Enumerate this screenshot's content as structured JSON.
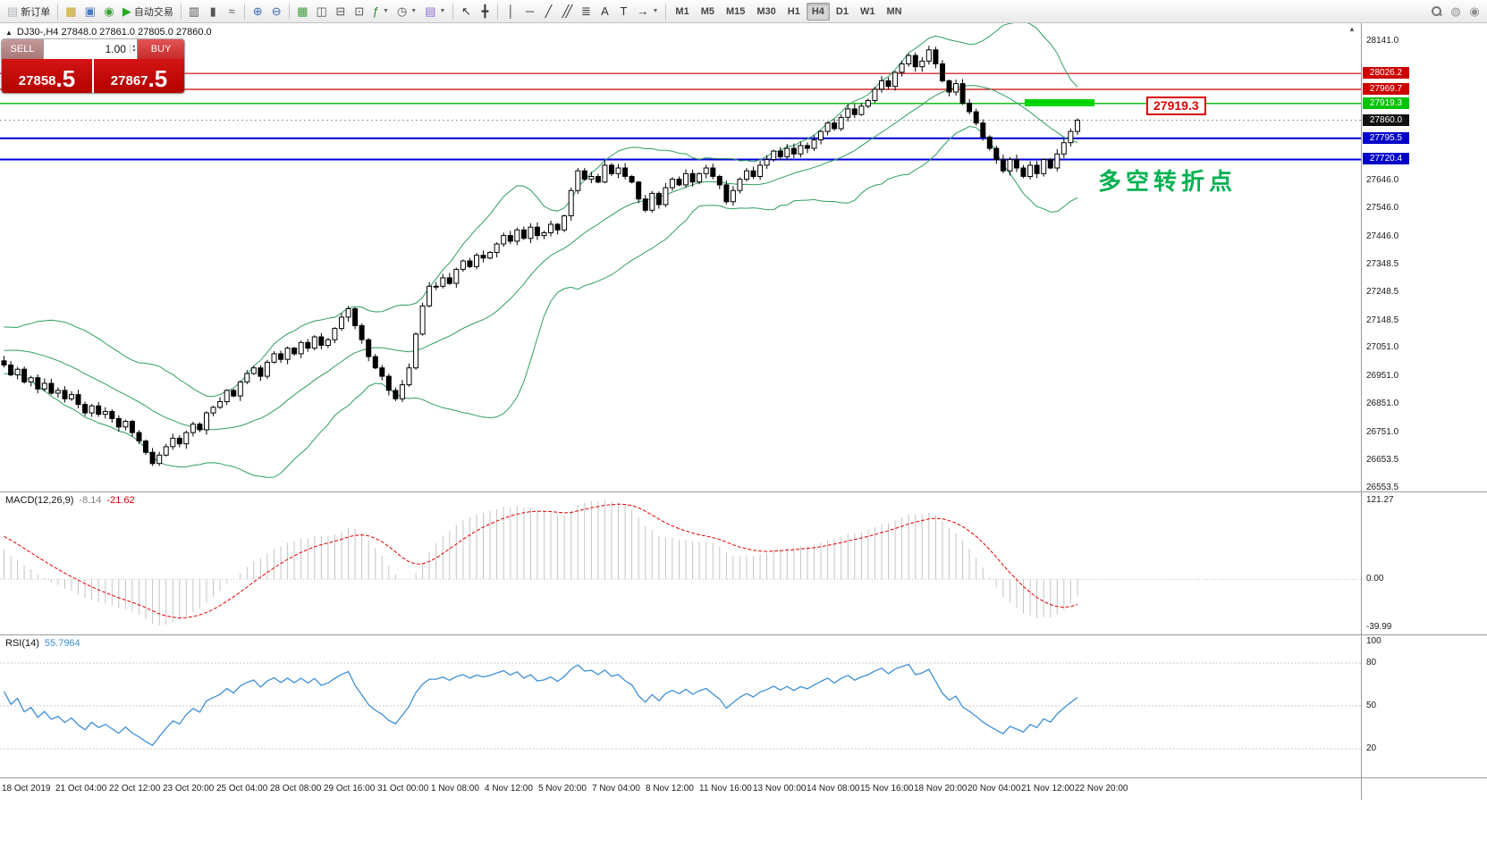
{
  "toolbar": {
    "items": [
      {
        "t": "btn",
        "name": "new-order-button",
        "glyph": "▤",
        "gc": "#b0b6c0",
        "label": "新订单"
      },
      {
        "t": "sep"
      },
      {
        "t": "btn",
        "name": "new-chart-button",
        "glyph": "▦",
        "gc": "#c79a2a"
      },
      {
        "t": "btn",
        "name": "profiles-button",
        "glyph": "▣",
        "gc": "#4a7ac0"
      },
      {
        "t": "btn",
        "name": "community-button",
        "glyph": "◉",
        "gc": "#3aa03a"
      },
      {
        "t": "btn",
        "name": "autotrading-button",
        "glyph": "▶",
        "gc": "#22aa22",
        "label": "自动交易"
      },
      {
        "t": "sep"
      },
      {
        "t": "btn",
        "name": "bar-chart-button",
        "glyph": "▥",
        "gc": "#555555"
      },
      {
        "t": "btn",
        "name": "candlestick-chart-button",
        "glyph": "▮",
        "gc": "#555555"
      },
      {
        "t": "btn",
        "name": "line-chart-button",
        "glyph": "≈",
        "gc": "#555555"
      },
      {
        "t": "sep"
      },
      {
        "t": "btn",
        "name": "zoom-in-button",
        "glyph": "⊕",
        "gc": "#3a6ab0"
      },
      {
        "t": "btn",
        "name": "zoom-out-button",
        "glyph": "⊖",
        "gc": "#3a6ab0"
      },
      {
        "t": "sep"
      },
      {
        "t": "btn",
        "name": "grid-button",
        "glyph": "▦",
        "gc": "#3aa03a"
      },
      {
        "t": "btn",
        "name": "tile-windows-button",
        "glyph": "◫",
        "gc": "#555555"
      },
      {
        "t": "btn",
        "name": "cascade-windows-button",
        "glyph": "⊟",
        "gc": "#555555"
      },
      {
        "t": "btn",
        "name": "arrange-windows-button",
        "glyph": "⊡",
        "gc": "#555555"
      },
      {
        "t": "btn",
        "name": "indicators-button",
        "glyph": "ƒ",
        "gc": "#228a22",
        "caret": true
      },
      {
        "t": "btn",
        "name": "periods-button",
        "glyph": "◷",
        "gc": "#555555",
        "caret": true
      },
      {
        "t": "btn",
        "name": "templates-button",
        "glyph": "▤",
        "gc": "#8a6ad0",
        "caret": true
      },
      {
        "t": "sep"
      },
      {
        "t": "btn",
        "name": "cursor-button",
        "glyph": "↖",
        "gc": "#333333"
      },
      {
        "t": "btn",
        "name": "crosshair-button",
        "glyph": "╋",
        "gc": "#333333"
      },
      {
        "t": "sep"
      },
      {
        "t": "btn",
        "name": "vertical-line-button",
        "glyph": "│",
        "gc": "#333333"
      },
      {
        "t": "btn",
        "name": "horizontal-line-button",
        "glyph": "─",
        "gc": "#333333"
      },
      {
        "t": "btn",
        "name": "trendline-button",
        "glyph": "╱",
        "gc": "#333333"
      },
      {
        "t": "btn",
        "name": "channel-button",
        "glyph": "╱╱",
        "gc": "#333333"
      },
      {
        "t": "btn",
        "name": "fibonacci-button",
        "glyph": "≣",
        "gc": "#333333"
      },
      {
        "t": "btn",
        "name": "text-button",
        "glyph": "A",
        "gc": "#333333"
      },
      {
        "t": "btn",
        "name": "label-button",
        "glyph": "T",
        "gc": "#333333"
      },
      {
        "t": "btn",
        "name": "shapes-button",
        "glyph": "→",
        "gc": "#333333",
        "caret": true
      },
      {
        "t": "sep"
      }
    ],
    "timeframes": [
      "M1",
      "M5",
      "M15",
      "M30",
      "H1",
      "H4",
      "D1",
      "W1",
      "MN"
    ],
    "active_timeframe": "H4",
    "right_items": [
      {
        "name": "search-button",
        "lens": true
      },
      {
        "name": "notifications-button",
        "glyph": "◍",
        "gc": "#909090"
      },
      {
        "name": "chat-button",
        "glyph": "◉",
        "gc": "#909090"
      }
    ]
  },
  "symbol_info": "DJ30-,H4  27848.0 27861.0 27805.0 27860.0",
  "trade_panel": {
    "sell_label": "SELL",
    "buy_label": "BUY",
    "volume": "1.00",
    "sell_price_int": "27858",
    "sell_price_frac": ".5",
    "buy_price_int": "27867",
    "buy_price_frac": ".5"
  },
  "annotations": {
    "price_callout": "27919.3",
    "turning_point_label": "多空转折点"
  },
  "levels": [
    {
      "label": "28026.2",
      "price": 28026.2,
      "line_color": "#cc0000",
      "box_color": "#cc0000",
      "width": 1.2
    },
    {
      "label": "27969.7",
      "price": 27969.7,
      "line_color": "#cc0000",
      "box_color": "#cc0000",
      "width": 1.2
    },
    {
      "label": "27919.3",
      "price": 27919.3,
      "line_color": "#00b400",
      "box_color": "#00c400",
      "width": 1.4
    },
    {
      "label": "27860.0",
      "price": 27860.0,
      "line_color": "#999999",
      "box_color": "#111111",
      "width": 1,
      "dashed": true
    },
    {
      "label": "27795.5",
      "price": 27795.5,
      "line_color": "#0000dd",
      "box_color": "#0000c8",
      "width": 2
    },
    {
      "label": "27720.4",
      "price": 27720.4,
      "line_color": "#0000dd",
      "box_color": "#0000c8",
      "width": 2
    }
  ],
  "price_axis_ticks": [
    "28141.0",
    "27646.0",
    "27546.0",
    "27446.0",
    "27348.5",
    "27248.5",
    "27148.5",
    "27051.0",
    "26951.0",
    "26851.0",
    "26751.0",
    "26653.5",
    "26553.5"
  ],
  "macd": {
    "name": "MACD(12,26,9)",
    "main_value": "-8.14",
    "signal_value": "-21.62",
    "axis_labels": [
      "121.27",
      "0.00",
      "-39.99"
    ]
  },
  "rsi": {
    "name": "RSI(14)",
    "value": "55.7964",
    "axis_labels": [
      "100",
      "80",
      "50",
      "20"
    ],
    "levels": [
      80,
      50,
      20
    ]
  },
  "colors": {
    "up_candle": "#ffffff",
    "down_candle": "#000000",
    "candle_border": "#000000",
    "bollinger": "#2f9e5f",
    "macd_histogram": "#c4c4c4",
    "macd_signal": "#e00000",
    "rsi_line": "#3f8fd6",
    "level_dotted": "#c8c8c8"
  },
  "chart_data": {
    "type": "candlestick",
    "symbol": "DJ30-",
    "timeframe": "H4",
    "ohlc_current": {
      "open": 27848.0,
      "high": 27861.0,
      "low": 27805.0,
      "close": 27860.0
    },
    "bollinger": {
      "period": 20,
      "deviation": 2
    },
    "visible_start": 30,
    "closes": [
      26700,
      26715,
      26740,
      26765,
      26790,
      26810,
      26835,
      26860,
      26880,
      26905,
      26925,
      26950,
      26970,
      26995,
      27015,
      27035,
      27050,
      27065,
      27075,
      27085,
      27090,
      27095,
      27088,
      27080,
      27072,
      27062,
      27052,
      27042,
      27022,
      27005,
      26990,
      26955,
      26975,
      26930,
      26945,
      26905,
      26925,
      26890,
      26900,
      26870,
      26885,
      26850,
      26820,
      26845,
      26815,
      26825,
      26800,
      26770,
      26790,
      26750,
      26720,
      26680,
      26640,
      26670,
      26700,
      26730,
      26710,
      26750,
      26780,
      26760,
      26820,
      26840,
      26860,
      26900,
      26880,
      26930,
      26960,
      26980,
      26950,
      27000,
      27030,
      27010,
      27050,
      27030,
      27070,
      27050,
      27090,
      27060,
      27080,
      27120,
      27160,
      27190,
      27130,
      27080,
      27020,
      26980,
      26950,
      26900,
      26870,
      26920,
      26980,
      27100,
      27200,
      27270,
      27270,
      27300,
      27280,
      27330,
      27360,
      27340,
      27380,
      27370,
      27390,
      27420,
      27450,
      27430,
      27470,
      27440,
      27480,
      27450,
      27460,
      27490,
      27470,
      27520,
      27610,
      27680,
      27650,
      27660,
      27640,
      27700,
      27670,
      27690,
      27660,
      27640,
      27580,
      27540,
      27600,
      27560,
      27620,
      27650,
      27630,
      27670,
      27640,
      27670,
      27690,
      27660,
      27630,
      27570,
      27610,
      27650,
      27680,
      27660,
      27700,
      27720,
      27750,
      27730,
      27760,
      27740,
      27770,
      27760,
      27790,
      27820,
      27850,
      27830,
      27870,
      27900,
      27880,
      27910,
      27930,
      27970,
      28000,
      27980,
      28030,
      28060,
      28090,
      28050,
      28070,
      28110,
      28060,
      28000,
      27960,
      27990,
      27920,
      27890,
      27850,
      27800,
      27760,
      27720,
      27680,
      27720,
      27690,
      27660,
      27700,
      27670,
      27720,
      27690,
      27740,
      27780,
      27820,
      27860
    ],
    "x_labels": [
      "18 Oct 2019",
      "21 Oct 04:00",
      "22 Oct 12:00",
      "23 Oct 20:00",
      "25 Oct 04:00",
      "28 Oct 08:00",
      "29 Oct 16:00",
      "31 Oct 00:00",
      "1 Nov 08:00",
      "4 Nov 12:00",
      "5 Nov 20:00",
      "7 Nov 04:00",
      "8 Nov 12:00",
      "11 Nov 16:00",
      "13 Nov 00:00",
      "14 Nov 08:00",
      "15 Nov 16:00",
      "18 Nov 20:00",
      "20 Nov 04:00",
      "21 Nov 12:00",
      "22 Nov 20:00"
    ]
  }
}
